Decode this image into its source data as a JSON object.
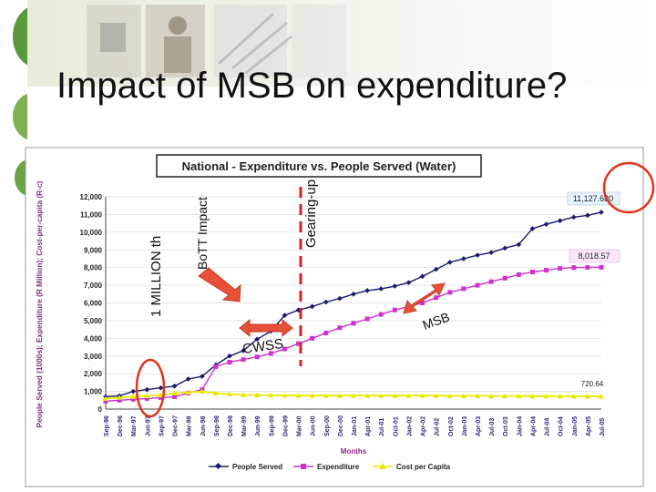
{
  "slide": {
    "title": "Impact of MSB on expenditure?"
  },
  "chart_data": {
    "type": "line",
    "title": "National - Expenditure vs. People Served (Water)",
    "xlabel": "Months",
    "ylabel": "People Served (1000s); Expenditure (R Million); Cost-per-capita (R-c)",
    "ylim": [
      0,
      12000
    ],
    "yticks": [
      0,
      1000,
      2000,
      3000,
      4000,
      5000,
      6000,
      7000,
      8000,
      9000,
      10000,
      11000,
      12000
    ],
    "ytick_labels": [
      "0",
      "1,000",
      "2,000",
      "3,000",
      "4,000",
      "5,000",
      "6,000",
      "7,000",
      "8,000",
      "9,000",
      "10,000",
      "11,000",
      "12,000"
    ],
    "categories": [
      "Sep-96",
      "Dec-96",
      "Mar-97",
      "Jun-97",
      "Sep-97",
      "Dec-97",
      "Mar-98",
      "Jun-98",
      "Sep-98",
      "Dec-98",
      "Mar-99",
      "Jun-99",
      "Sep-99",
      "Dec-99",
      "Mar-00",
      "Jun-00",
      "Sep-00",
      "Dec-00",
      "Jan-01",
      "Apr-01",
      "Jul-01",
      "Oct-01",
      "Jan-02",
      "Apr-02",
      "Jul-02",
      "Oct-02",
      "Jan-03",
      "Apr-03",
      "Jul-03",
      "Oct-03",
      "Jan-04",
      "Apr-04",
      "Jul-04",
      "Oct-04",
      "Jan-05",
      "Apr-05",
      "Jul-05"
    ],
    "series": [
      {
        "name": "People Served",
        "color": "#1a1a6e",
        "marker": "diamond",
        "values": [
          700,
          750,
          1000,
          1100,
          1200,
          1300,
          1700,
          1850,
          2500,
          3000,
          3300,
          3950,
          4400,
          5300,
          5600,
          5800,
          6050,
          6250,
          6500,
          6700,
          6800,
          6950,
          7150,
          7500,
          7900,
          8300,
          8500,
          8700,
          8850,
          9100,
          9300,
          10200,
          10450,
          10650,
          10850,
          10950,
          11127.68
        ]
      },
      {
        "name": "Expenditure",
        "color": "#cc33cc",
        "marker": "square",
        "values": [
          450,
          500,
          550,
          600,
          650,
          700,
          900,
          1100,
          2400,
          2650,
          2800,
          2950,
          3150,
          3400,
          3700,
          4000,
          4300,
          4600,
          4850,
          5100,
          5350,
          5600,
          5800,
          6000,
          6300,
          6600,
          6800,
          7000,
          7200,
          7400,
          7600,
          7750,
          7850,
          7950,
          8000,
          8010,
          8018.57
        ]
      },
      {
        "name": "Cost per Capita",
        "color": "#e8e800",
        "marker": "triangle",
        "values": [
          600,
          650,
          700,
          750,
          800,
          900,
          950,
          1000,
          900,
          850,
          800,
          800,
          780,
          780,
          760,
          760,
          760,
          760,
          760,
          760,
          760,
          760,
          760,
          760,
          760,
          750,
          750,
          750,
          740,
          740,
          740,
          730,
          730,
          730,
          720,
          720,
          720.64
        ]
      }
    ],
    "end_labels": [
      "11,127.680",
      "8,018.57",
      "720.64"
    ],
    "legend_position": "bottom",
    "annotations": {
      "vertical_labels": [
        "1 MILLION th",
        "BoTT Impact",
        "Gearing-up"
      ],
      "arrow_labels": [
        "CWSS",
        "MSB"
      ]
    }
  }
}
